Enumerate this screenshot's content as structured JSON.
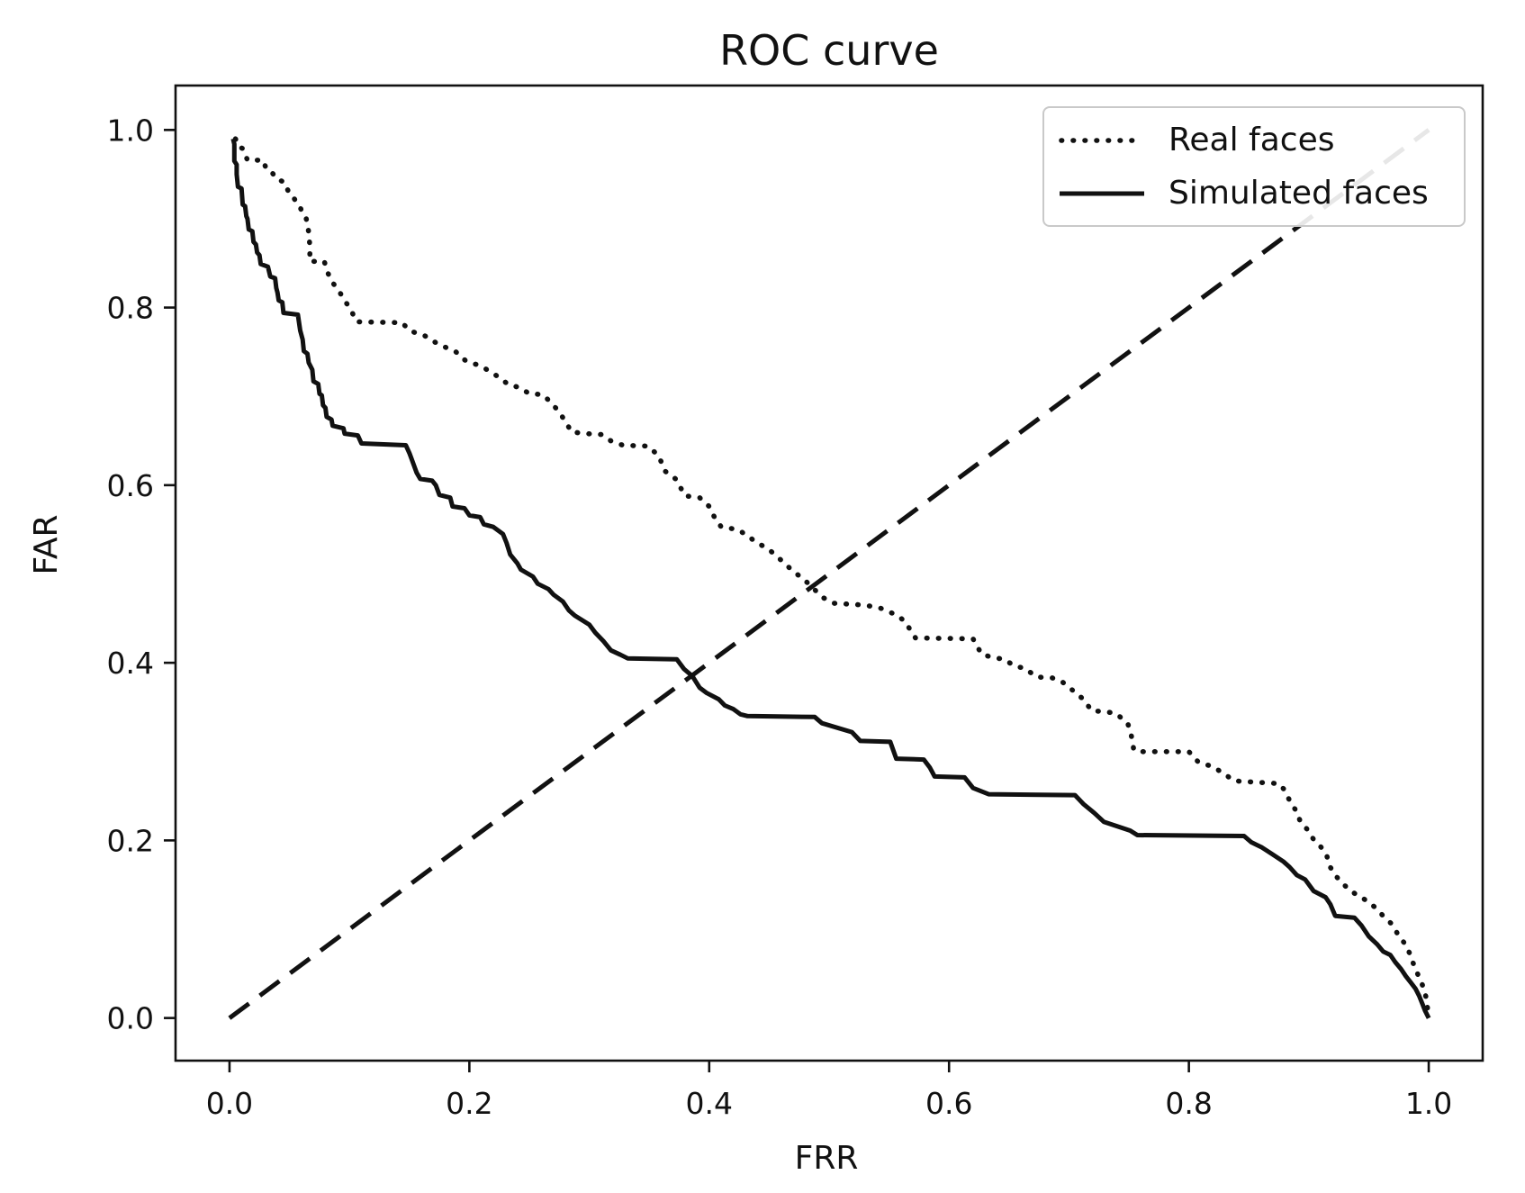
{
  "chart_data": {
    "type": "line",
    "title": "ROC curve",
    "xlabel": "FRR",
    "ylabel": "FAR",
    "xlim": [
      -0.045,
      1.045
    ],
    "ylim": [
      -0.048,
      1.05
    ],
    "grid": false,
    "legend_position": "upper right",
    "x_ticks": [
      0.0,
      0.2,
      0.4,
      0.6,
      0.8,
      1.0
    ],
    "x_tick_labels": [
      "0.0",
      "0.2",
      "0.4",
      "0.6",
      "0.8",
      "1.0"
    ],
    "y_ticks": [
      0.0,
      0.2,
      0.4,
      0.6,
      0.8,
      1.0
    ],
    "y_tick_labels": [
      "0.0",
      "0.2",
      "0.4",
      "0.6",
      "0.8",
      "1.0"
    ],
    "line_color": "#111111",
    "series": [
      {
        "id": "real-faces",
        "name": "Real faces",
        "style": "dotted",
        "color": "#111111",
        "zorder": 2,
        "show_in_legend": true,
        "points": [
          [
            0.005,
            0.99
          ],
          [
            0.008,
            0.981
          ],
          [
            0.011,
            0.979
          ],
          [
            0.015,
            0.966
          ],
          [
            0.028,
            0.966
          ],
          [
            0.031,
            0.955
          ],
          [
            0.036,
            0.951
          ],
          [
            0.039,
            0.945
          ],
          [
            0.046,
            0.941
          ],
          [
            0.049,
            0.931
          ],
          [
            0.052,
            0.928
          ],
          [
            0.055,
            0.92
          ],
          [
            0.059,
            0.913
          ],
          [
            0.061,
            0.905
          ],
          [
            0.064,
            0.9
          ],
          [
            0.066,
            0.885
          ],
          [
            0.067,
            0.869
          ],
          [
            0.067,
            0.852
          ],
          [
            0.079,
            0.852
          ],
          [
            0.082,
            0.839
          ],
          [
            0.085,
            0.83
          ],
          [
            0.092,
            0.817
          ],
          [
            0.096,
            0.808
          ],
          [
            0.101,
            0.798
          ],
          [
            0.106,
            0.784
          ],
          [
            0.144,
            0.783
          ],
          [
            0.15,
            0.774
          ],
          [
            0.163,
            0.768
          ],
          [
            0.175,
            0.758
          ],
          [
            0.188,
            0.751
          ],
          [
            0.197,
            0.74
          ],
          [
            0.21,
            0.734
          ],
          [
            0.223,
            0.723
          ],
          [
            0.233,
            0.713
          ],
          [
            0.242,
            0.71
          ],
          [
            0.25,
            0.703
          ],
          [
            0.261,
            0.702
          ],
          [
            0.269,
            0.692
          ],
          [
            0.275,
            0.682
          ],
          [
            0.281,
            0.67
          ],
          [
            0.285,
            0.66
          ],
          [
            0.297,
            0.658
          ],
          [
            0.31,
            0.657
          ],
          [
            0.319,
            0.649
          ],
          [
            0.328,
            0.645
          ],
          [
            0.349,
            0.644
          ],
          [
            0.358,
            0.633
          ],
          [
            0.363,
            0.616
          ],
          [
            0.372,
            0.607
          ],
          [
            0.38,
            0.588
          ],
          [
            0.392,
            0.586
          ],
          [
            0.4,
            0.576
          ],
          [
            0.404,
            0.565
          ],
          [
            0.41,
            0.553
          ],
          [
            0.424,
            0.55
          ],
          [
            0.432,
            0.543
          ],
          [
            0.44,
            0.535
          ],
          [
            0.447,
            0.53
          ],
          [
            0.454,
            0.523
          ],
          [
            0.462,
            0.513
          ],
          [
            0.47,
            0.503
          ],
          [
            0.478,
            0.495
          ],
          [
            0.486,
            0.485
          ],
          [
            0.494,
            0.474
          ],
          [
            0.504,
            0.467
          ],
          [
            0.529,
            0.465
          ],
          [
            0.542,
            0.462
          ],
          [
            0.556,
            0.454
          ],
          [
            0.563,
            0.447
          ],
          [
            0.572,
            0.428
          ],
          [
            0.62,
            0.427
          ],
          [
            0.627,
            0.41
          ],
          [
            0.636,
            0.406
          ],
          [
            0.646,
            0.404
          ],
          [
            0.655,
            0.396
          ],
          [
            0.663,
            0.394
          ],
          [
            0.673,
            0.384
          ],
          [
            0.686,
            0.383
          ],
          [
            0.694,
            0.379
          ],
          [
            0.704,
            0.368
          ],
          [
            0.712,
            0.359
          ],
          [
            0.719,
            0.346
          ],
          [
            0.73,
            0.345
          ],
          [
            0.739,
            0.343
          ],
          [
            0.749,
            0.332
          ],
          [
            0.752,
            0.318
          ],
          [
            0.754,
            0.302
          ],
          [
            0.76,
            0.3
          ],
          [
            0.8,
            0.3
          ],
          [
            0.808,
            0.288
          ],
          [
            0.82,
            0.283
          ],
          [
            0.827,
            0.277
          ],
          [
            0.838,
            0.267
          ],
          [
            0.875,
            0.264
          ],
          [
            0.879,
            0.258
          ],
          [
            0.884,
            0.245
          ],
          [
            0.89,
            0.232
          ],
          [
            0.893,
            0.221
          ],
          [
            0.899,
            0.212
          ],
          [
            0.904,
            0.201
          ],
          [
            0.912,
            0.19
          ],
          [
            0.915,
            0.183
          ],
          [
            0.917,
            0.172
          ],
          [
            0.921,
            0.163
          ],
          [
            0.925,
            0.156
          ],
          [
            0.931,
            0.148
          ],
          [
            0.936,
            0.142
          ],
          [
            0.944,
            0.136
          ],
          [
            0.95,
            0.13
          ],
          [
            0.955,
            0.125
          ],
          [
            0.962,
            0.115
          ],
          [
            0.969,
            0.106
          ],
          [
            0.974,
            0.095
          ],
          [
            0.978,
            0.088
          ],
          [
            0.982,
            0.079
          ],
          [
            0.985,
            0.07
          ],
          [
            0.987,
            0.062
          ],
          [
            0.99,
            0.052
          ],
          [
            0.993,
            0.043
          ],
          [
            0.996,
            0.033
          ],
          [
            0.998,
            0.022
          ],
          [
            1.0,
            0.0
          ]
        ]
      },
      {
        "id": "simulated-faces",
        "name": "Simulated faces",
        "style": "solid",
        "color": "#111111",
        "zorder": 3,
        "show_in_legend": true,
        "points": [
          [
            0.003,
            0.99
          ],
          [
            0.004,
            0.984
          ],
          [
            0.004,
            0.965
          ],
          [
            0.006,
            0.961
          ],
          [
            0.006,
            0.95
          ],
          [
            0.007,
            0.936
          ],
          [
            0.01,
            0.934
          ],
          [
            0.011,
            0.916
          ],
          [
            0.013,
            0.914
          ],
          [
            0.014,
            0.903
          ],
          [
            0.015,
            0.9
          ],
          [
            0.016,
            0.888
          ],
          [
            0.019,
            0.886
          ],
          [
            0.02,
            0.874
          ],
          [
            0.022,
            0.871
          ],
          [
            0.023,
            0.862
          ],
          [
            0.025,
            0.859
          ],
          [
            0.026,
            0.849
          ],
          [
            0.032,
            0.846
          ],
          [
            0.034,
            0.835
          ],
          [
            0.038,
            0.833
          ],
          [
            0.039,
            0.822
          ],
          [
            0.04,
            0.817
          ],
          [
            0.041,
            0.808
          ],
          [
            0.044,
            0.806
          ],
          [
            0.045,
            0.794
          ],
          [
            0.057,
            0.792
          ],
          [
            0.059,
            0.774
          ],
          [
            0.061,
            0.764
          ],
          [
            0.062,
            0.751
          ],
          [
            0.065,
            0.748
          ],
          [
            0.066,
            0.738
          ],
          [
            0.069,
            0.73
          ],
          [
            0.07,
            0.717
          ],
          [
            0.074,
            0.714
          ],
          [
            0.075,
            0.703
          ],
          [
            0.077,
            0.701
          ],
          [
            0.078,
            0.69
          ],
          [
            0.08,
            0.687
          ],
          [
            0.081,
            0.677
          ],
          [
            0.085,
            0.674
          ],
          [
            0.086,
            0.667
          ],
          [
            0.095,
            0.664
          ],
          [
            0.096,
            0.658
          ],
          [
            0.107,
            0.656
          ],
          [
            0.11,
            0.647
          ],
          [
            0.147,
            0.645
          ],
          [
            0.15,
            0.636
          ],
          [
            0.152,
            0.629
          ],
          [
            0.156,
            0.614
          ],
          [
            0.159,
            0.607
          ],
          [
            0.169,
            0.605
          ],
          [
            0.172,
            0.6
          ],
          [
            0.175,
            0.589
          ],
          [
            0.184,
            0.586
          ],
          [
            0.186,
            0.576
          ],
          [
            0.196,
            0.574
          ],
          [
            0.2,
            0.566
          ],
          [
            0.209,
            0.564
          ],
          [
            0.212,
            0.556
          ],
          [
            0.22,
            0.553
          ],
          [
            0.228,
            0.545
          ],
          [
            0.231,
            0.535
          ],
          [
            0.234,
            0.522
          ],
          [
            0.24,
            0.512
          ],
          [
            0.243,
            0.505
          ],
          [
            0.253,
            0.497
          ],
          [
            0.257,
            0.489
          ],
          [
            0.266,
            0.483
          ],
          [
            0.27,
            0.477
          ],
          [
            0.278,
            0.469
          ],
          [
            0.283,
            0.459
          ],
          [
            0.288,
            0.453
          ],
          [
            0.3,
            0.443
          ],
          [
            0.305,
            0.434
          ],
          [
            0.312,
            0.424
          ],
          [
            0.318,
            0.414
          ],
          [
            0.326,
            0.409
          ],
          [
            0.332,
            0.405
          ],
          [
            0.373,
            0.404
          ],
          [
            0.379,
            0.393
          ],
          [
            0.386,
            0.385
          ],
          [
            0.392,
            0.372
          ],
          [
            0.398,
            0.366
          ],
          [
            0.408,
            0.359
          ],
          [
            0.413,
            0.352
          ],
          [
            0.42,
            0.348
          ],
          [
            0.426,
            0.342
          ],
          [
            0.432,
            0.34
          ],
          [
            0.488,
            0.339
          ],
          [
            0.494,
            0.332
          ],
          [
            0.519,
            0.322
          ],
          [
            0.526,
            0.312
          ],
          [
            0.551,
            0.311
          ],
          [
            0.556,
            0.292
          ],
          [
            0.579,
            0.291
          ],
          [
            0.584,
            0.282
          ],
          [
            0.588,
            0.272
          ],
          [
            0.613,
            0.271
          ],
          [
            0.62,
            0.259
          ],
          [
            0.633,
            0.252
          ],
          [
            0.705,
            0.251
          ],
          [
            0.712,
            0.241
          ],
          [
            0.721,
            0.231
          ],
          [
            0.729,
            0.221
          ],
          [
            0.751,
            0.211
          ],
          [
            0.757,
            0.206
          ],
          [
            0.846,
            0.205
          ],
          [
            0.852,
            0.198
          ],
          [
            0.861,
            0.192
          ],
          [
            0.869,
            0.185
          ],
          [
            0.879,
            0.176
          ],
          [
            0.884,
            0.17
          ],
          [
            0.89,
            0.161
          ],
          [
            0.897,
            0.156
          ],
          [
            0.904,
            0.143
          ],
          [
            0.914,
            0.136
          ],
          [
            0.918,
            0.128
          ],
          [
            0.922,
            0.115
          ],
          [
            0.938,
            0.113
          ],
          [
            0.944,
            0.104
          ],
          [
            0.95,
            0.092
          ],
          [
            0.957,
            0.083
          ],
          [
            0.962,
            0.075
          ],
          [
            0.968,
            0.071
          ],
          [
            0.972,
            0.063
          ],
          [
            0.977,
            0.055
          ],
          [
            0.981,
            0.047
          ],
          [
            0.985,
            0.04
          ],
          [
            0.989,
            0.033
          ],
          [
            0.992,
            0.025
          ],
          [
            0.995,
            0.015
          ],
          [
            0.997,
            0.008
          ],
          [
            1.0,
            0.0
          ]
        ]
      },
      {
        "id": "chance-diagonal",
        "name": "chance diagonal",
        "style": "dashed",
        "color": "#111111",
        "zorder": 1,
        "show_in_legend": false,
        "points": [
          [
            0.0,
            0.0
          ],
          [
            1.0,
            1.0
          ]
        ]
      }
    ]
  },
  "legend": {
    "entries": [
      {
        "label": "Real faces",
        "line_style": "dotted"
      },
      {
        "label": "Simulated faces",
        "line_style": "solid"
      }
    ]
  }
}
